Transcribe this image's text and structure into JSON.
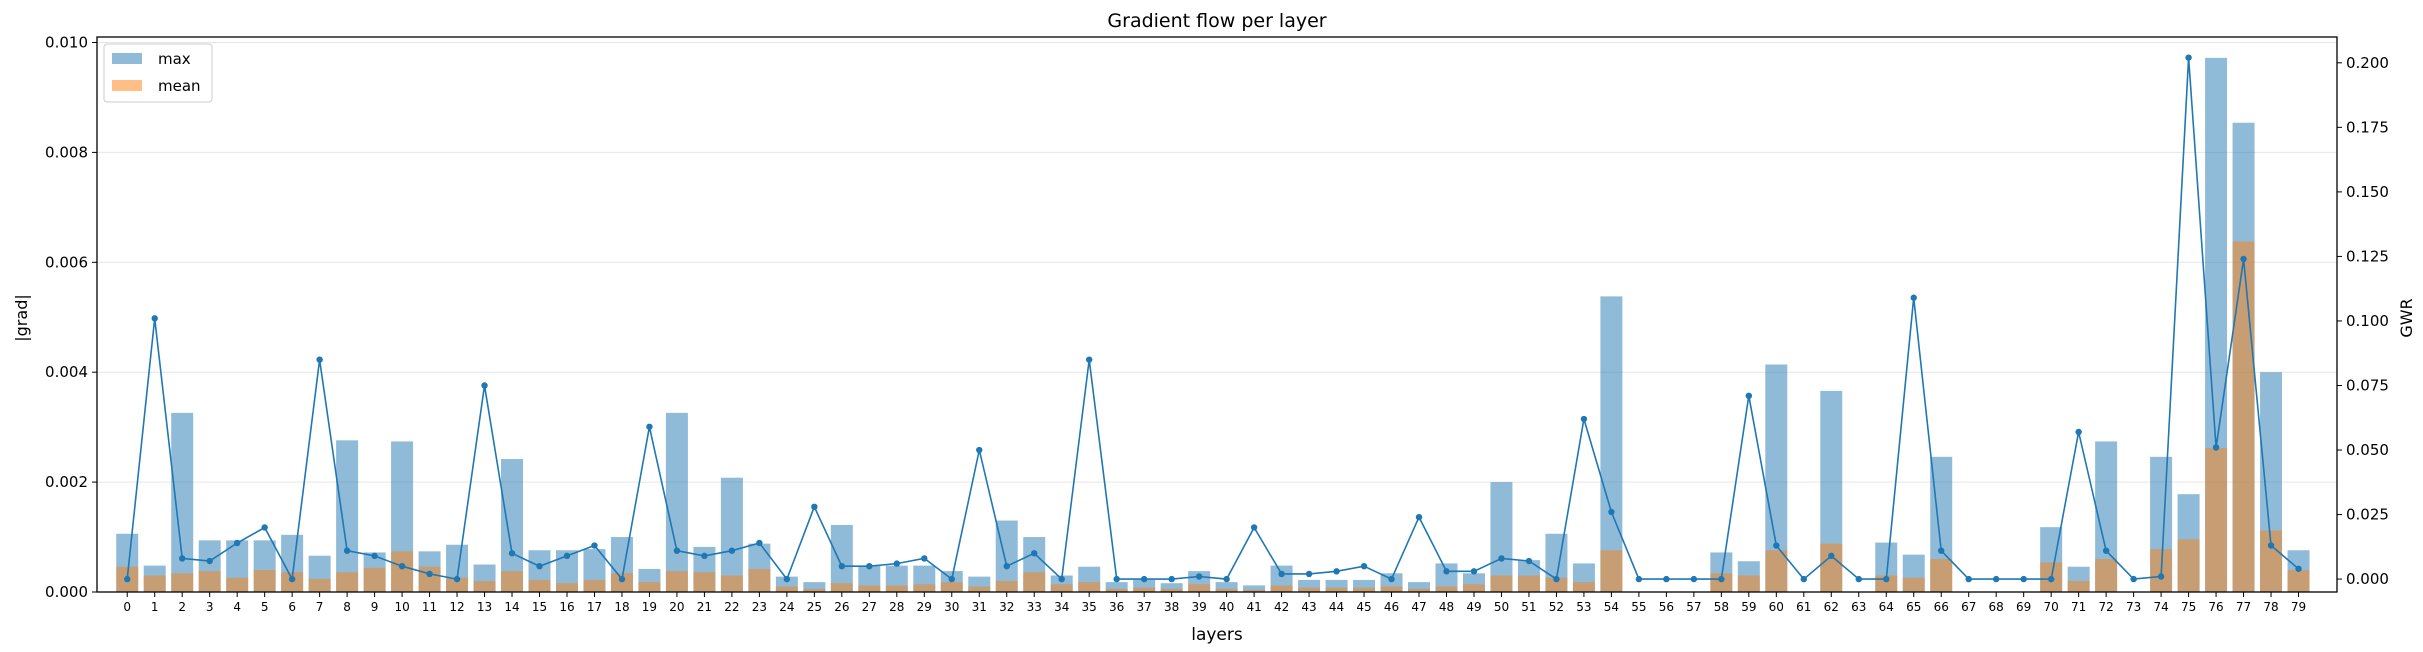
{
  "chart_data": {
    "type": "bar",
    "title": "Gradient flow per layer",
    "xlabel": "layers",
    "ylabel": "|grad|",
    "y2label": "GWR",
    "ylim": [
      0,
      0.0101
    ],
    "y2lim": [
      -0.005,
      0.21
    ],
    "yticks": [
      "0.000",
      "0.002",
      "0.004",
      "0.006",
      "0.008",
      "0.010"
    ],
    "y2ticks": [
      "0.000",
      "0.025",
      "0.050",
      "0.075",
      "0.100",
      "0.125",
      "0.150",
      "0.175",
      "0.200"
    ],
    "grid": true,
    "legend_position": "top-left",
    "categories": [
      "0",
      "1",
      "2",
      "3",
      "4",
      "5",
      "6",
      "7",
      "8",
      "9",
      "10",
      "11",
      "12",
      "13",
      "14",
      "15",
      "16",
      "17",
      "18",
      "19",
      "20",
      "21",
      "22",
      "23",
      "24",
      "25",
      "26",
      "27",
      "28",
      "29",
      "30",
      "31",
      "32",
      "33",
      "34",
      "35",
      "36",
      "37",
      "38",
      "39",
      "40",
      "41",
      "42",
      "43",
      "44",
      "45",
      "46",
      "47",
      "48",
      "49",
      "50",
      "51",
      "52",
      "53",
      "54",
      "55",
      "56",
      "57",
      "58",
      "59",
      "60",
      "61",
      "62",
      "63",
      "64",
      "65",
      "66",
      "67",
      "68",
      "69",
      "70",
      "71",
      "72",
      "73",
      "74",
      "75",
      "76",
      "77",
      "78",
      "79"
    ],
    "series": [
      {
        "name": "max",
        "type": "bar",
        "axis": "left",
        "color": "#1f77b4",
        "opacity": 0.5,
        "values": [
          0.00106,
          0.00048,
          0.00326,
          0.00094,
          0.00094,
          0.00094,
          0.00104,
          0.00066,
          0.00276,
          0.00072,
          0.00274,
          0.00074,
          0.00086,
          0.0005,
          0.00242,
          0.00076,
          0.00076,
          0.00078,
          0.001,
          0.00042,
          0.00326,
          0.00082,
          0.00208,
          0.00088,
          0.00028,
          0.00018,
          0.00122,
          0.00048,
          0.00048,
          0.00048,
          0.00038,
          0.00028,
          0.0013,
          0.001,
          0.0003,
          0.00046,
          0.00018,
          0.00022,
          0.00016,
          0.00038,
          0.00018,
          0.00012,
          0.00048,
          0.00022,
          0.00022,
          0.00022,
          0.00034,
          0.00018,
          0.00052,
          0.00034,
          0.002,
          0.00058,
          0.00106,
          0.00052,
          0.00538,
          0.0,
          0.0,
          0.0,
          0.00072,
          0.00056,
          0.00414,
          0.0,
          0.00366,
          0.0,
          0.0009,
          0.00068,
          0.00246,
          0.0,
          0.0,
          0.0,
          0.00118,
          0.00046,
          0.00274,
          0.0,
          0.00246,
          0.00178,
          0.00972,
          0.00854,
          0.004,
          0.00076
        ]
      },
      {
        "name": "mean",
        "type": "bar",
        "axis": "left",
        "color": "#ff7f0e",
        "opacity": 0.5,
        "values": [
          0.00046,
          0.0003,
          0.00034,
          0.00038,
          0.00026,
          0.0004,
          0.00036,
          0.00024,
          0.00036,
          0.00044,
          0.00074,
          0.00046,
          0.00026,
          0.0002,
          0.00038,
          0.00022,
          0.00016,
          0.00022,
          0.00034,
          0.00018,
          0.00038,
          0.00036,
          0.0003,
          0.00042,
          0.0001,
          6e-05,
          0.00016,
          0.00012,
          0.00012,
          0.00014,
          0.00018,
          0.0001,
          0.0002,
          0.00036,
          0.00014,
          0.00018,
          6e-05,
          8e-05,
          6e-05,
          0.00014,
          6e-05,
          4e-05,
          0.00012,
          8e-05,
          8e-05,
          8e-05,
          0.0001,
          6e-05,
          0.0001,
          0.00014,
          0.0003,
          0.0003,
          0.00026,
          0.00018,
          0.00076,
          0.0,
          0.0,
          0.0,
          0.00034,
          0.0003,
          0.00076,
          0.0,
          0.00088,
          0.0,
          0.0003,
          0.00026,
          0.0006,
          0.0,
          0.0,
          0.0,
          0.00054,
          0.0002,
          0.0006,
          0.0,
          0.00078,
          0.00096,
          0.00262,
          0.00638,
          0.00112,
          0.0004
        ]
      },
      {
        "name": "GWR",
        "type": "line",
        "axis": "right",
        "color": "#1f77b4",
        "values": [
          0.0,
          0.101,
          0.008,
          0.007,
          0.014,
          0.02,
          0.0,
          0.085,
          0.011,
          0.009,
          0.005,
          0.002,
          0.0,
          0.075,
          0.01,
          0.005,
          0.009,
          0.013,
          0.0,
          0.059,
          0.011,
          0.009,
          0.011,
          0.014,
          0.0,
          0.028,
          0.005,
          0.005,
          0.006,
          0.008,
          0.0,
          0.05,
          0.005,
          0.01,
          0.0,
          0.085,
          0.0,
          0.0,
          0.0,
          0.001,
          0.0,
          0.02,
          0.002,
          0.002,
          0.003,
          0.005,
          0.0,
          0.024,
          0.003,
          0.003,
          0.008,
          0.007,
          0.0,
          0.062,
          0.026,
          0.0,
          0.0,
          0.0,
          0.0,
          0.071,
          0.013,
          0.0,
          0.009,
          0.0,
          0.0,
          0.109,
          0.011,
          0.0,
          0.0,
          0.0,
          0.0,
          0.057,
          0.011,
          0.0,
          0.001,
          0.202,
          0.051,
          0.124,
          0.013,
          0.004
        ]
      }
    ]
  }
}
